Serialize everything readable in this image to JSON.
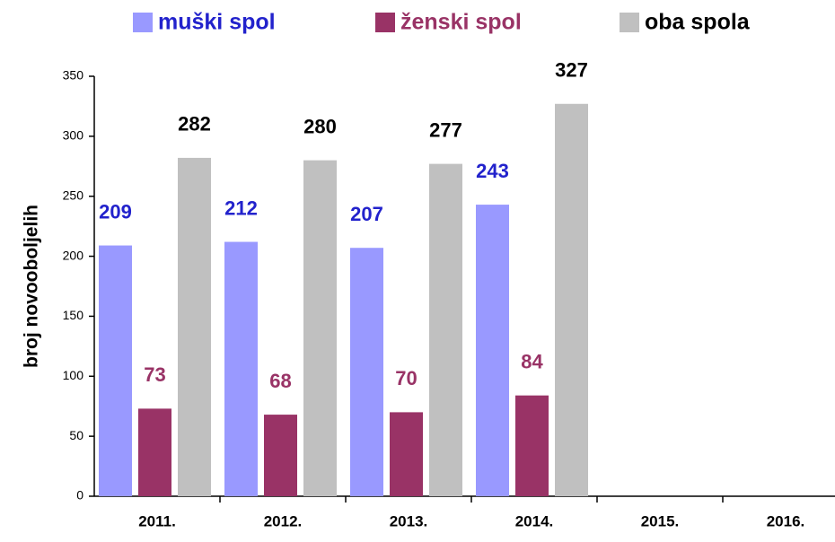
{
  "chart_data": {
    "type": "bar",
    "y_label": "broj novooboljelih",
    "categories": [
      "2011.",
      "2012.",
      "2013.",
      "2014.",
      "2015.",
      "2016."
    ],
    "series": [
      {
        "name": "muški spol",
        "color": "#9999ff",
        "label_color": "#2222cc",
        "values": [
          209,
          212,
          207,
          243,
          null,
          null
        ]
      },
      {
        "name": "ženski spol",
        "color": "#993366",
        "label_color": "#993366",
        "values": [
          73,
          68,
          70,
          84,
          null,
          null
        ]
      },
      {
        "name": "oba spola",
        "color": "#c0c0c0",
        "label_color": "#000000",
        "values": [
          282,
          280,
          277,
          327,
          null,
          null
        ]
      }
    ],
    "ylim": [
      0,
      350
    ],
    "yticks": [
      0,
      50,
      100,
      150,
      200,
      250,
      300,
      350
    ],
    "grid": false,
    "legend": "top"
  }
}
